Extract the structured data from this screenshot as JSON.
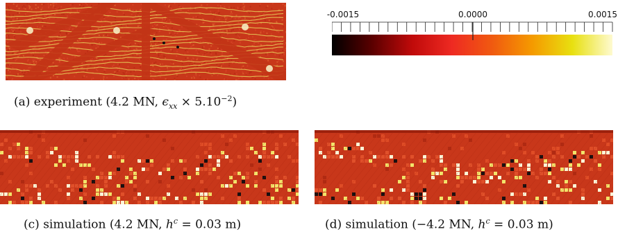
{
  "figure": {
    "panels": [
      {
        "id": "a",
        "caption_prefix": "(a) experiment (4.2 MN, ",
        "caption_math": "ϵ",
        "caption_sub": "xx",
        "caption_mid": " × 5.10",
        "caption_sup": "−2",
        "caption_suffix": ")"
      },
      {
        "id": "c",
        "caption_prefix": "(c) simulation (4.2 MN, ",
        "caption_math": "h",
        "caption_sup": "c",
        "caption_suffix": " = 0.03 m)"
      },
      {
        "id": "d",
        "caption_prefix": "(d) simulation (−4.2 MN, ",
        "caption_math": "h",
        "caption_sup": "c",
        "caption_suffix": " = 0.03 m)"
      }
    ],
    "colorbar": {
      "tick_labels": [
        "-0.0015",
        "0.0000",
        "0.0015"
      ],
      "colormap": [
        "#000000",
        "#5a0000",
        "#c00a0a",
        "#ee2a22",
        "#f05a10",
        "#f59a00",
        "#e8e010",
        "#fefad0"
      ]
    },
    "colors": {
      "base": "#c8371a",
      "light": "#e8d060",
      "dark": "#1a1010"
    }
  }
}
